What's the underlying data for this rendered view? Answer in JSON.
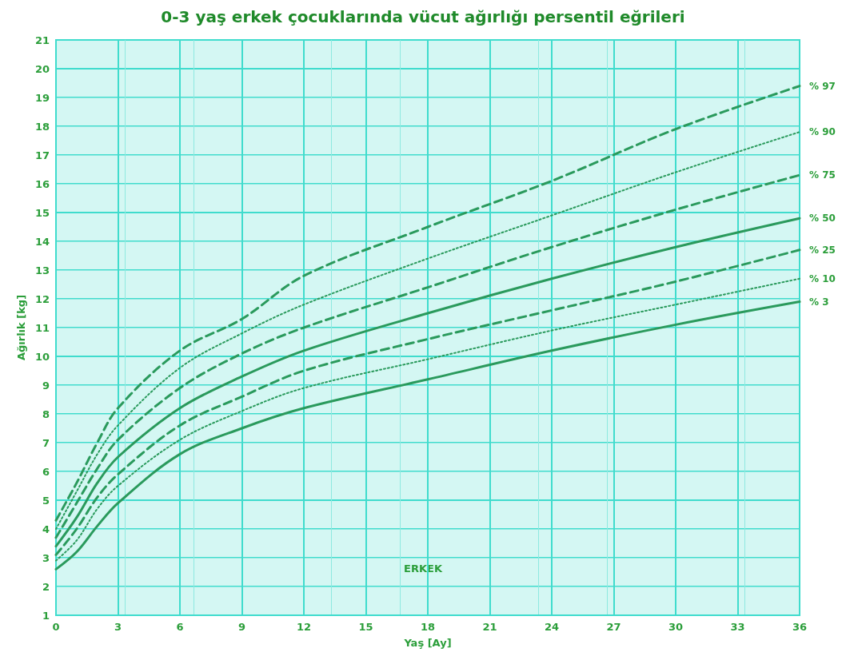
{
  "chart_data": {
    "type": "line",
    "title": "0-3 yaş erkek çocuklarında vücut ağırlığı persentil eğrileri",
    "xlabel": "Yaş [Ay]",
    "ylabel": "Ağırlık [kg]",
    "annotations": [
      "ERKEK"
    ],
    "x": [
      0,
      1,
      2,
      3,
      6,
      9,
      12,
      18,
      24,
      30,
      36
    ],
    "series": [
      {
        "name": "% 97",
        "color": "#2a9a5c",
        "line_style": "dashed",
        "values": [
          4.3,
          5.6,
          7.0,
          8.2,
          10.2,
          11.3,
          12.8,
          14.5,
          16.1,
          17.9,
          19.4
        ]
      },
      {
        "name": "% 90",
        "color": "#2a9a5c",
        "line_style": "dotted",
        "values": [
          4.0,
          5.3,
          6.6,
          7.6,
          9.6,
          10.8,
          11.8,
          13.4,
          14.9,
          16.4,
          17.8
        ]
      },
      {
        "name": "% 75",
        "color": "#2a9a5c",
        "line_style": "dashed",
        "values": [
          3.7,
          4.9,
          6.1,
          7.1,
          8.9,
          10.1,
          11.0,
          12.4,
          13.8,
          15.1,
          16.3
        ]
      },
      {
        "name": "% 50",
        "color": "#2a9a5c",
        "line_style": "solid",
        "values": [
          3.4,
          4.4,
          5.6,
          6.5,
          8.2,
          9.3,
          10.2,
          11.5,
          12.7,
          13.8,
          14.8
        ]
      },
      {
        "name": "% 25",
        "color": "#2a9a5c",
        "line_style": "dashed",
        "values": [
          3.1,
          4.0,
          5.1,
          5.9,
          7.6,
          8.6,
          9.5,
          10.6,
          11.6,
          12.6,
          13.7
        ]
      },
      {
        "name": "% 10",
        "color": "#2a9a5c",
        "line_style": "dotted",
        "values": [
          2.9,
          3.6,
          4.7,
          5.5,
          7.1,
          8.1,
          8.9,
          9.9,
          10.9,
          11.8,
          12.7
        ]
      },
      {
        "name": "% 3",
        "color": "#2a9a5c",
        "line_style": "solid",
        "values": [
          2.6,
          3.2,
          4.1,
          4.9,
          6.6,
          7.5,
          8.2,
          9.2,
          10.2,
          11.1,
          11.9
        ]
      }
    ],
    "xlim": [
      0,
      36
    ],
    "xticks": [
      0,
      3,
      6,
      9,
      12,
      15,
      18,
      21,
      24,
      27,
      30,
      33,
      36
    ],
    "ylim": [
      1,
      21
    ],
    "yticks": [
      1,
      2,
      3,
      4,
      5,
      6,
      7,
      8,
      9,
      10,
      11,
      12,
      13,
      14,
      15,
      16,
      17,
      18,
      19,
      20,
      21
    ],
    "grid": true,
    "legend": false,
    "marker": "none"
  }
}
